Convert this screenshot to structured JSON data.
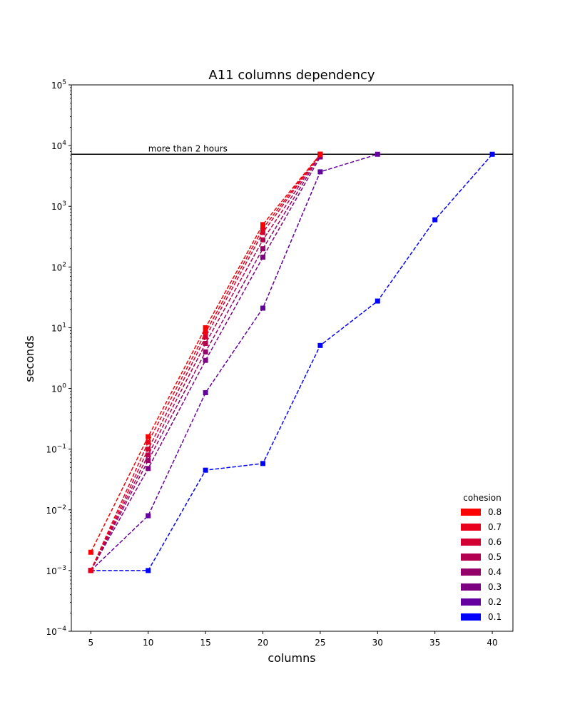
{
  "chart_data": {
    "type": "line",
    "title": "A11 columns dependency",
    "xlabel": "columns",
    "ylabel": "seconds",
    "y_scale": "log",
    "xlim": [
      3.3,
      41.8
    ],
    "ylim": [
      0.0001,
      100000
    ],
    "xticks": [
      5,
      10,
      15,
      20,
      25,
      30,
      35,
      40
    ],
    "xtick_labels": [
      "5",
      "10",
      "15",
      "20",
      "25",
      "30",
      "35",
      "40"
    ],
    "yticks": [
      0.0001,
      0.001,
      0.01,
      0.1,
      1,
      10,
      100,
      1000,
      10000,
      100000
    ],
    "ytick_labels": [
      {
        "base": "10",
        "exp": "−4"
      },
      {
        "base": "10",
        "exp": "−3"
      },
      {
        "base": "10",
        "exp": "−2"
      },
      {
        "base": "10",
        "exp": "−1"
      },
      {
        "base": "10",
        "exp": "0"
      },
      {
        "base": "10",
        "exp": "1"
      },
      {
        "base": "10",
        "exp": "2"
      },
      {
        "base": "10",
        "exp": "3"
      },
      {
        "base": "10",
        "exp": "4"
      },
      {
        "base": "10",
        "exp": "5"
      }
    ],
    "grid": false,
    "reference_line": {
      "y": 7200,
      "label": "more than 2 hours",
      "label_x": 10,
      "color": "#000000"
    },
    "legend": {
      "title": "cohesion",
      "position": "lower right"
    },
    "series": [
      {
        "name": "0.8",
        "color": "#ff0000",
        "line_style": "dashed",
        "marker": "square",
        "x": [
          5,
          10,
          15,
          20,
          25
        ],
        "y": [
          0.002,
          0.16,
          10,
          500,
          7200
        ]
      },
      {
        "name": "0.7",
        "color": "#e9001c",
        "line_style": "dashed",
        "marker": "square",
        "x": [
          5,
          10,
          15,
          20,
          25
        ],
        "y": [
          0.001,
          0.13,
          8.3,
          430,
          7200
        ]
      },
      {
        "name": "0.6",
        "color": "#d20032",
        "line_style": "dashed",
        "marker": "square",
        "x": [
          5,
          10,
          15,
          20,
          25
        ],
        "y": [
          0.001,
          0.1,
          7,
          370,
          7200
        ]
      },
      {
        "name": "0.5",
        "color": "#b40050",
        "line_style": "dashed",
        "marker": "square",
        "x": [
          5,
          10,
          15,
          20,
          25
        ],
        "y": [
          0.001,
          0.08,
          5.5,
          280,
          7200
        ]
      },
      {
        "name": "0.4",
        "color": "#96006a",
        "line_style": "dashed",
        "marker": "square",
        "x": [
          5,
          10,
          15,
          20,
          25
        ],
        "y": [
          0.001,
          0.065,
          4,
          200,
          7000
        ]
      },
      {
        "name": "0.3",
        "color": "#7d0082",
        "line_style": "dashed",
        "marker": "square",
        "x": [
          5,
          10,
          15,
          20,
          25
        ],
        "y": [
          0.001,
          0.048,
          2.9,
          145,
          6500
        ]
      },
      {
        "name": "0.2",
        "color": "#6400a0",
        "line_style": "dashed",
        "marker": "square",
        "x": [
          5,
          10,
          15,
          20,
          25,
          30
        ],
        "y": [
          0.001,
          0.008,
          0.85,
          21,
          3700,
          7200
        ]
      },
      {
        "name": "0.1",
        "color": "#0000ff",
        "line_style": "dashed",
        "marker": "square",
        "x": [
          5,
          10,
          15,
          20,
          25,
          30,
          35,
          40
        ],
        "y": [
          0.001,
          0.001,
          0.045,
          0.058,
          5.1,
          27.5,
          600,
          7200
        ]
      }
    ]
  }
}
